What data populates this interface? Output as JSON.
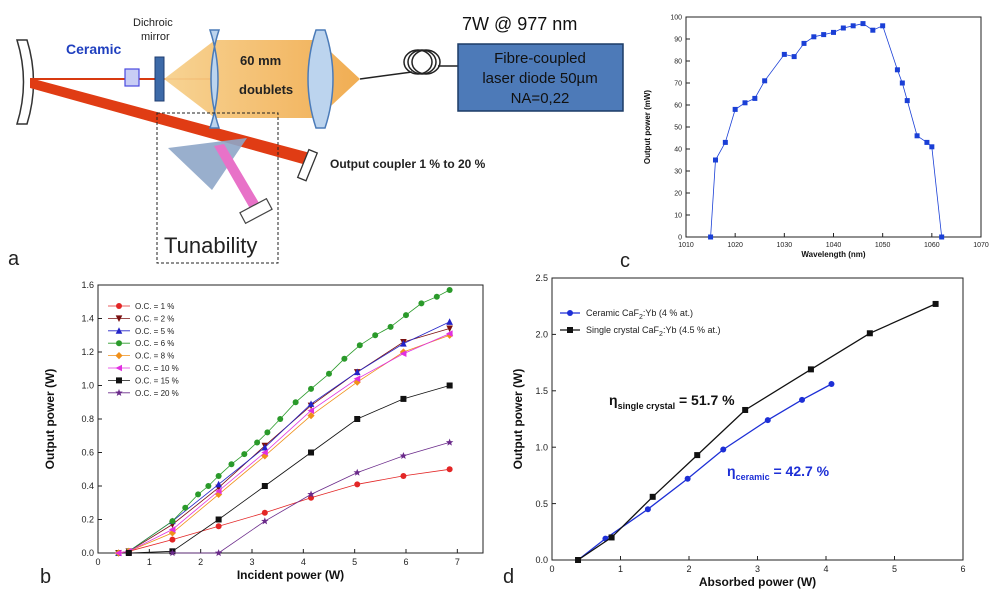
{
  "panel_letters": {
    "a": "a",
    "b": "b",
    "c": "c",
    "d": "d"
  },
  "schematic": {
    "ceramic_label": "Ceramic",
    "dichroic_label_1": "Dichroic",
    "dichroic_label_2": "mirror",
    "doublets_label_1": "60 mm",
    "doublets_label_2": "doublets",
    "pump_power_label": "7W @ 977 nm",
    "diode_label_1": "Fibre-coupled",
    "diode_label_2": "laser diode 50µm",
    "diode_label_3": "NA=0,22",
    "output_coupler_label": "Output coupler 1 % to 20 %",
    "tunability_label": "Tunability",
    "colors": {
      "ceramic_text": "#1f3fbf",
      "beam": "#e03c14",
      "lens_fill": "#f3c47d",
      "diode_box": "#4d7ab8",
      "prism": "#8ea6c8",
      "tuned_beam": "#e872c8"
    }
  },
  "chart_data": [
    {
      "id": "c",
      "type": "scatter",
      "title": "",
      "xlabel": "Wavelength (nm)",
      "ylabel": "Output power (mW)",
      "xlim": [
        1010,
        1070
      ],
      "ylim": [
        0,
        100
      ],
      "xticks": [
        "1010",
        "1020",
        "1030",
        "1040",
        "1050",
        "1060",
        "1070"
      ],
      "yticks": [
        "0",
        "10",
        "20",
        "30",
        "40",
        "50",
        "60",
        "70",
        "80",
        "90",
        "100"
      ],
      "grid": false,
      "color": "#1a3fd6",
      "series": [
        {
          "x": [
            1015,
            1016,
            1018,
            1020,
            1022,
            1024,
            1026,
            1030,
            1032,
            1034,
            1036,
            1038,
            1040,
            1042,
            1044,
            1046,
            1048,
            1050,
            1053,
            1054,
            1055,
            1057,
            1059,
            1060,
            1062
          ],
          "y": [
            0,
            35,
            43,
            58,
            61,
            63,
            71,
            83,
            82,
            88,
            91,
            92,
            93,
            95,
            96,
            97,
            94,
            96,
            76,
            70,
            62,
            46,
            43,
            41,
            0
          ]
        }
      ]
    },
    {
      "id": "b",
      "type": "line",
      "title": "",
      "xlabel": "Incident power (W)",
      "ylabel": "Output power (W)",
      "xlim": [
        0,
        7.5
      ],
      "ylim": [
        0,
        1.6
      ],
      "xticks": [
        "0",
        "1",
        "2",
        "3",
        "4",
        "5",
        "6",
        "7"
      ],
      "yticks": [
        "0.0",
        "0.2",
        "0.4",
        "0.6",
        "0.8",
        "1.0",
        "1.2",
        "1.4",
        "1.6"
      ],
      "grid": false,
      "legend_position": "top-left",
      "series": [
        {
          "name": "O.C. = 1 %",
          "color": "#e32626",
          "marker": "circle",
          "x": [
            0.4,
            0.6,
            1.45,
            2.35,
            3.25,
            4.15,
            5.05,
            5.95,
            6.85
          ],
          "y": [
            0,
            0.01,
            0.08,
            0.16,
            0.24,
            0.33,
            0.41,
            0.46,
            0.5
          ]
        },
        {
          "name": "O.C. = 2 %",
          "color": "#7a1010",
          "marker": "tri-down",
          "x": [
            0.4,
            0.6,
            1.45,
            2.35,
            3.25,
            4.15,
            5.05,
            5.95,
            6.85
          ],
          "y": [
            0,
            0.01,
            0.17,
            0.39,
            0.64,
            0.88,
            1.08,
            1.26,
            1.34
          ]
        },
        {
          "name": "O.C. = 5 %",
          "color": "#2323c8",
          "marker": "tri-up",
          "x": [
            0.4,
            0.6,
            1.45,
            2.35,
            3.25,
            4.15,
            5.05,
            5.95,
            6.85
          ],
          "y": [
            0,
            0.01,
            0.19,
            0.41,
            0.63,
            0.89,
            1.08,
            1.25,
            1.38
          ]
        },
        {
          "name": "O.C. = 6 %",
          "color": "#2a9a2a",
          "marker": "circle",
          "x": [
            0.4,
            0.6,
            1.45,
            1.7,
            1.95,
            2.15,
            2.35,
            2.6,
            2.85,
            3.1,
            3.3,
            3.55,
            3.85,
            4.15,
            4.5,
            4.8,
            5.1,
            5.4,
            5.7,
            6,
            6.3,
            6.6,
            6.85
          ],
          "y": [
            0,
            0.01,
            0.19,
            0.27,
            0.35,
            0.4,
            0.46,
            0.53,
            0.59,
            0.66,
            0.72,
            0.8,
            0.9,
            0.98,
            1.07,
            1.16,
            1.24,
            1.3,
            1.35,
            1.42,
            1.49,
            1.53,
            1.57
          ]
        },
        {
          "name": "O.C. = 8 %",
          "color": "#f0901a",
          "marker": "diamond",
          "x": [
            0.4,
            0.6,
            1.45,
            2.35,
            3.25,
            4.15,
            5.05,
            5.95,
            6.85
          ],
          "y": [
            0,
            0.01,
            0.12,
            0.35,
            0.58,
            0.82,
            1.02,
            1.2,
            1.3
          ]
        },
        {
          "name": "O.C. = 10 %",
          "color": "#e030e0",
          "marker": "tri-left",
          "x": [
            0.4,
            0.6,
            1.45,
            2.35,
            3.25,
            4.15,
            5.05,
            5.95,
            6.85
          ],
          "y": [
            0,
            0.01,
            0.14,
            0.37,
            0.6,
            0.85,
            1.04,
            1.19,
            1.31
          ]
        },
        {
          "name": "O.C. = 15 %",
          "color": "#111111",
          "marker": "square",
          "x": [
            0.6,
            1.45,
            2.35,
            3.25,
            4.15,
            5.05,
            5.95,
            6.85
          ],
          "y": [
            0,
            0.01,
            0.2,
            0.4,
            0.6,
            0.8,
            0.92,
            1.0
          ]
        },
        {
          "name": "O.C. = 20 %",
          "color": "#6a2a8a",
          "marker": "star",
          "x": [
            1.45,
            2.35,
            3.25,
            4.15,
            5.05,
            5.95,
            6.85
          ],
          "y": [
            0,
            0,
            0.19,
            0.35,
            0.48,
            0.58,
            0.66
          ]
        }
      ]
    },
    {
      "id": "d",
      "type": "line",
      "title": "",
      "xlabel": "Absorbed power (W)",
      "ylabel": "Output power (W)",
      "xlim": [
        0,
        6
      ],
      "ylim": [
        0,
        2.5
      ],
      "xticks": [
        "0",
        "1",
        "2",
        "3",
        "4",
        "5",
        "6"
      ],
      "yticks": [
        "0.0",
        "0.5",
        "1.0",
        "1.5",
        "2.0",
        "2.5"
      ],
      "grid": false,
      "legend_position": "top-left",
      "series": [
        {
          "name": "Ceramic CaF2:Yb (4 % at.)",
          "name_parts": [
            "Ceramic CaF",
            "2",
            ":Yb (4 % at.)"
          ],
          "color": "#1d2fd6",
          "marker": "circle",
          "x": [
            0.38,
            0.78,
            1.4,
            1.98,
            2.5,
            3.15,
            3.65,
            4.08
          ],
          "y": [
            0,
            0.19,
            0.45,
            0.72,
            0.98,
            1.24,
            1.42,
            1.56
          ]
        },
        {
          "name": "Single crystal CaF2:Yb (4.5 % at.)",
          "name_parts": [
            "Single crystal CaF",
            "2",
            ":Yb (4.5 % at.)"
          ],
          "color": "#111111",
          "marker": "square",
          "x": [
            0.38,
            0.87,
            1.47,
            2.12,
            2.82,
            3.78,
            4.64,
            5.6
          ],
          "y": [
            0,
            0.2,
            0.56,
            0.93,
            1.33,
            1.69,
            2.01,
            2.27
          ]
        }
      ],
      "annotations": [
        {
          "eta": "η",
          "sub": "single crystal",
          "value": " = 51.7 %",
          "color": "#111111"
        },
        {
          "eta": "η",
          "sub": "ceramic",
          "value": " = 42.7 %",
          "color": "#1d2fd6"
        }
      ]
    }
  ]
}
